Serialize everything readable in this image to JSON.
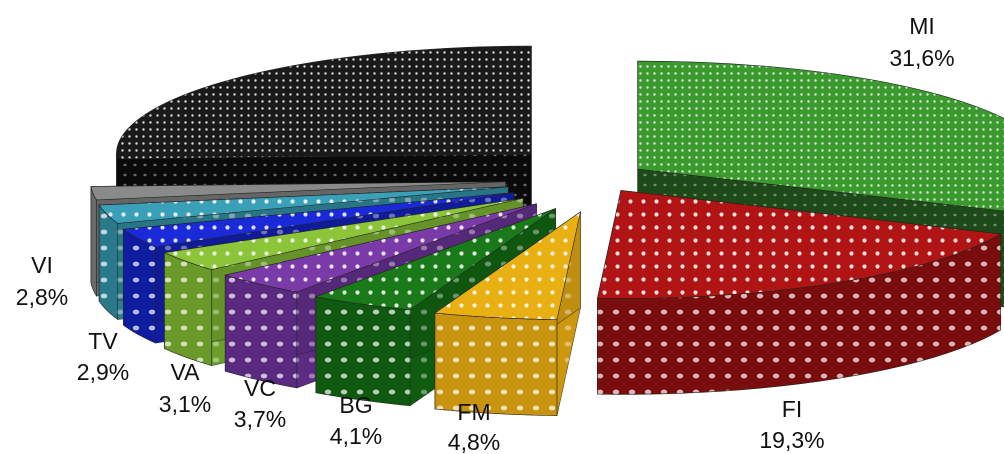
{
  "chart_data": {
    "type": "pie",
    "style": "3d-exploded",
    "title": "",
    "legend": "none",
    "slices": [
      {
        "category": "MI",
        "value": 31.6,
        "label": "31,6%",
        "color": "#3a9a2e",
        "side_color": "#1f4d1a",
        "pattern": "fine-dots"
      },
      {
        "category": "FI",
        "value": 19.3,
        "label": "19,3%",
        "color": "#b01414",
        "side_color": "#7a0e0e",
        "pattern": "dots"
      },
      {
        "category": "FM",
        "value": 4.8,
        "label": "4,8%",
        "color": "#e8b012",
        "side_color": "#c89410",
        "pattern": "dots"
      },
      {
        "category": "BG",
        "value": 4.1,
        "label": "4,1%",
        "color": "#1a7a1a",
        "side_color": "#0f5a10",
        "pattern": "dots"
      },
      {
        "category": "VC",
        "value": 3.7,
        "label": "3,7%",
        "color": "#7a3aa8",
        "side_color": "#5a2a80",
        "pattern": "dots"
      },
      {
        "category": "VA",
        "value": 3.1,
        "label": "3,1%",
        "color": "#8cc43a",
        "side_color": "#6a9a2a",
        "pattern": "dots"
      },
      {
        "category": "TV",
        "value": 2.9,
        "label": "2,9%",
        "color": "#1a2ad8",
        "side_color": "#101ca0",
        "pattern": "dots"
      },
      {
        "category": "VI",
        "value": 2.8,
        "label": "2,8%",
        "color": "#3aa0b8",
        "side_color": "#2a7a8c",
        "pattern": "dots"
      },
      {
        "category": "",
        "value": 2.0,
        "label": "",
        "color": "#8a8a8a",
        "side_color": "#6a6a6a",
        "pattern": "none"
      },
      {
        "category": "",
        "value": 25.7,
        "label": "",
        "color": "#1a1a1a",
        "side_color": "#0a0a0a",
        "pattern": "fine-dots"
      }
    ]
  }
}
